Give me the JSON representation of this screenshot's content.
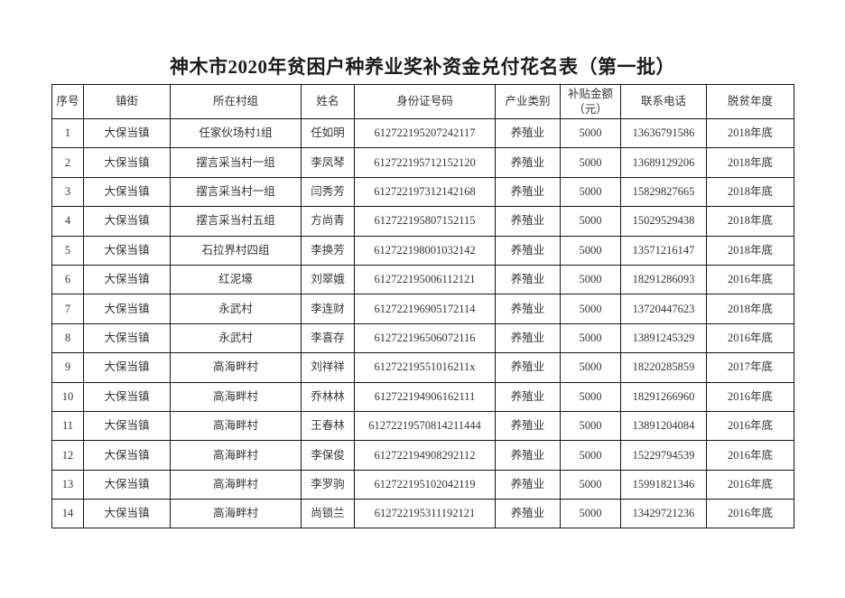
{
  "page": {
    "title": "神木市2020年贫困户种养业奖补资金兑付花名表（第一批）"
  },
  "table": {
    "headers": [
      "序号",
      "镇街",
      "所在村组",
      "姓名",
      "身份证号码",
      "产业类别",
      "补贴金额（元）",
      "联系电话",
      "脱贫年度"
    ],
    "rows": [
      [
        "1",
        "大保当镇",
        "任家伙场村1组",
        "任如明",
        "612722195207242117",
        "养殖业",
        "5000",
        "13636791586",
        "2018年底"
      ],
      [
        "2",
        "大保当镇",
        "摆言采当村一组",
        "李凤琴",
        "612722195712152120",
        "养殖业",
        "5000",
        "13689129206",
        "2018年底"
      ],
      [
        "3",
        "大保当镇",
        "摆言采当村一组",
        "闫秀芳",
        "612722197312142168",
        "养殖业",
        "5000",
        "15829827665",
        "2018年底"
      ],
      [
        "4",
        "大保当镇",
        "摆言采当村五组",
        "方尚青",
        "612722195807152115",
        "养殖业",
        "5000",
        "15029529438",
        "2018年底"
      ],
      [
        "5",
        "大保当镇",
        "石拉界村四组",
        "李换芳",
        "612722198001032142",
        "养殖业",
        "5000",
        "13571216147",
        "2018年底"
      ],
      [
        "6",
        "大保当镇",
        "红泥壕",
        "刘翠娥",
        "612722195006112121",
        "养殖业",
        "5000",
        "18291286093",
        "2016年底"
      ],
      [
        "7",
        "大保当镇",
        "永武村",
        "李连财",
        "612722196905172114",
        "养殖业",
        "5000",
        "13720447623",
        "2018年底"
      ],
      [
        "8",
        "大保当镇",
        "永武村",
        "李喜存",
        "612722196506072116",
        "养殖业",
        "5000",
        "13891245329",
        "2016年底"
      ],
      [
        "9",
        "大保当镇",
        "高海畔村",
        "刘祥祥",
        "61272219551016211x",
        "养殖业",
        "5000",
        "18220285859",
        "2017年底"
      ],
      [
        "10",
        "大保当镇",
        "高海畔村",
        "乔林林",
        "612722194906162111",
        "养殖业",
        "5000",
        "18291266960",
        "2016年底"
      ],
      [
        "11",
        "大保当镇",
        "高海畔村",
        "王春林",
        "61272219570814211444",
        "养殖业",
        "5000",
        "13891204084",
        "2016年底"
      ],
      [
        "12",
        "大保当镇",
        "高海畔村",
        "李保俊",
        "612722194908292112",
        "养殖业",
        "5000",
        "15229794539",
        "2016年底"
      ],
      [
        "13",
        "大保当镇",
        "高海畔村",
        "李罗驹",
        "612722195102042119",
        "养殖业",
        "5000",
        "15991821346",
        "2016年底"
      ],
      [
        "14",
        "大保当镇",
        "高海畔村",
        "尚锁兰",
        "612722195311192121",
        "养殖业",
        "5000",
        "13429721236",
        "2016年底"
      ]
    ]
  }
}
